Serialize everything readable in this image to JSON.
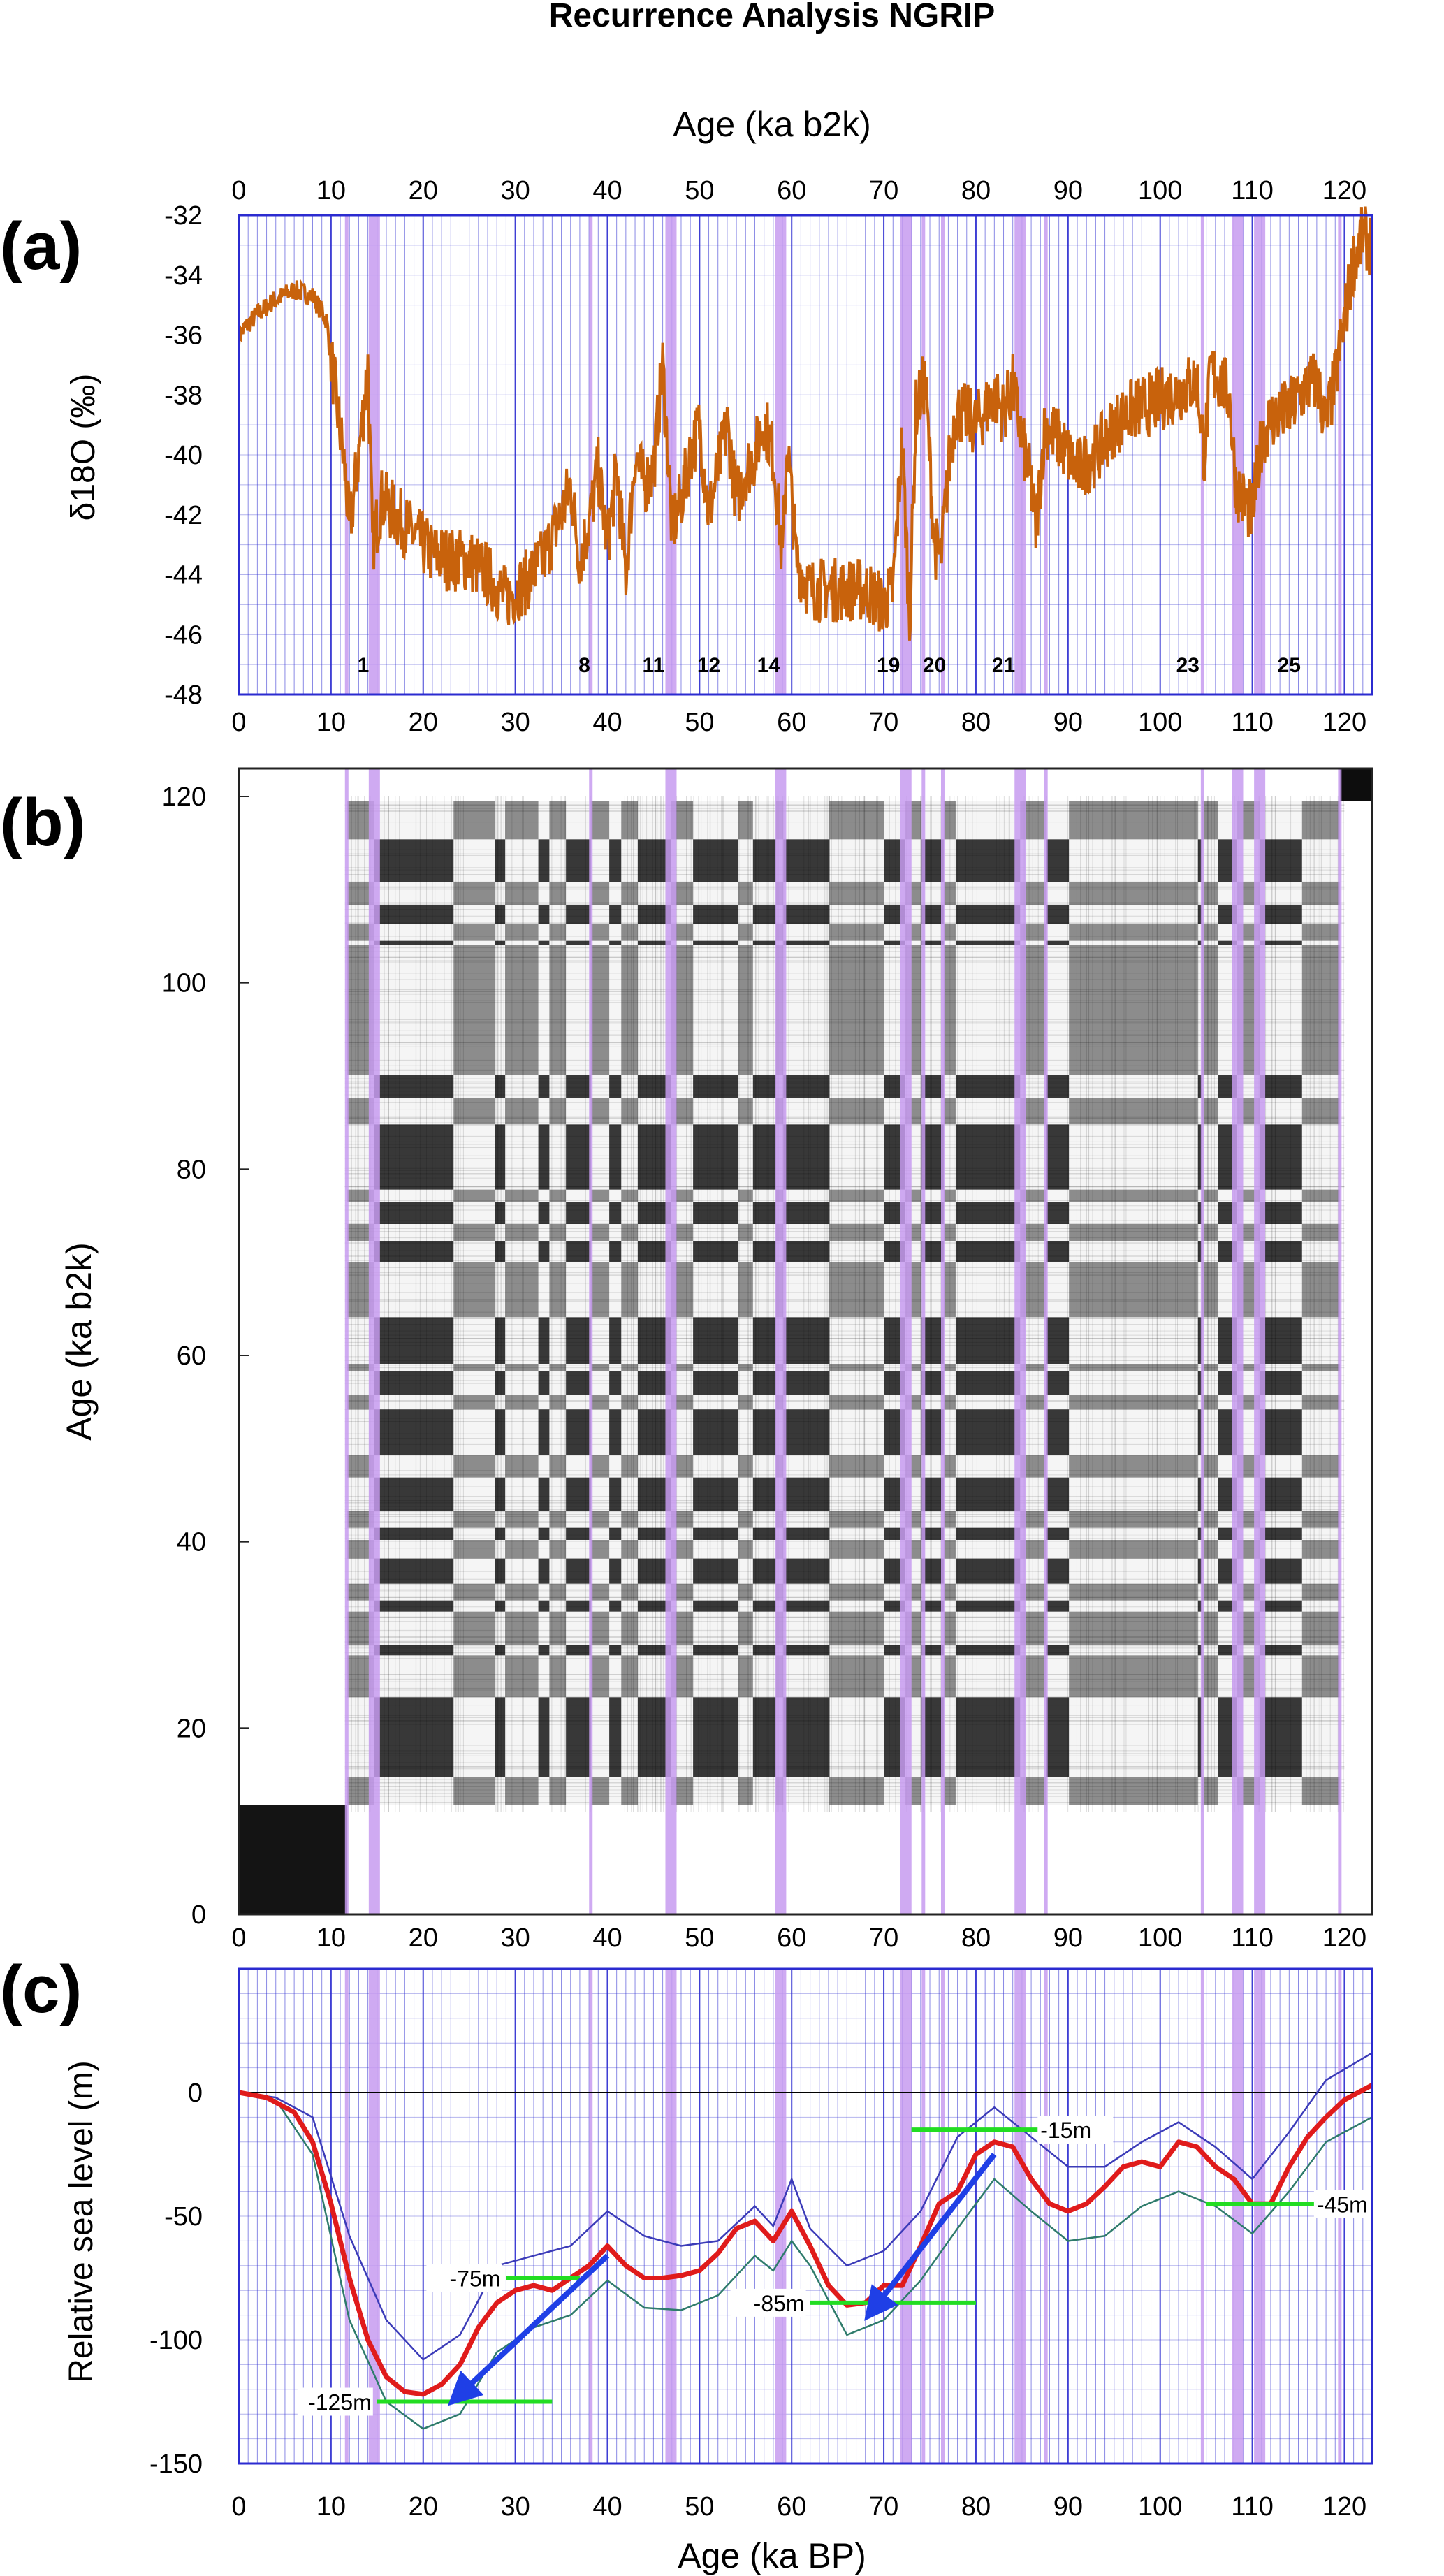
{
  "figure": {
    "title": "Recurrence Analysis NGRIP",
    "panel_labels": [
      "(a)",
      "(b)",
      "(c)"
    ]
  },
  "colors": {
    "isotope_curve": "#c8620c",
    "mean_sea_level": "#e01b1b",
    "envelope_upper": "#3b3bb8",
    "envelope_lower": "#2e7b6b",
    "grid_blue": "#2b2bd0",
    "event_band": "#c79bf0",
    "level_line": "#22dd22",
    "arrow": "#1f3fe6",
    "recurrence_black": "#000000"
  },
  "chart_data": [
    {
      "panel": "(a)",
      "type": "line",
      "title": "",
      "xlabel": "Age (ka b2k)",
      "ylabel": "δ18O (‰)",
      "xlim": [
        0,
        123
      ],
      "ylim": [
        -48,
        -32
      ],
      "x_ticks": [
        0,
        10,
        20,
        30,
        40,
        50,
        60,
        70,
        80,
        90,
        100,
        110,
        120
      ],
      "y_ticks": [
        -32,
        -34,
        -36,
        -38,
        -40,
        -42,
        -44,
        -46,
        -48
      ],
      "grid": true,
      "series": [
        {
          "x": [
            0,
            2,
            4,
            6,
            8,
            9.5,
            10.5,
            11.5,
            12,
            13,
            14,
            14.5,
            15.5,
            17,
            19,
            21,
            23,
            25,
            27,
            29,
            31,
            33,
            35,
            36,
            37,
            38,
            39,
            40,
            41,
            42,
            43,
            44,
            45,
            46,
            47,
            48,
            49,
            50,
            51,
            52,
            53,
            54,
            55,
            56,
            57,
            58,
            59,
            59.5,
            60.5,
            62,
            64,
            66,
            68,
            70,
            71,
            72,
            72.8,
            73.5,
            74.5,
            75.5,
            76.2,
            77,
            77.8,
            79,
            80,
            81,
            82,
            83,
            84,
            85,
            86,
            86.5,
            87.5,
            89,
            91,
            93,
            95,
            97,
            99,
            101,
            103,
            104,
            104.8,
            105.5,
            106.5,
            107.5,
            108.2,
            109,
            110,
            111,
            112,
            114,
            116,
            117,
            118,
            119,
            120,
            121,
            122,
            123
          ],
          "y": [
            -36,
            -35.3,
            -34.8,
            -34.5,
            -34.7,
            -35.5,
            -38,
            -40.5,
            -42.5,
            -40,
            -37,
            -43,
            -41.5,
            -42,
            -42.7,
            -43.3,
            -43.5,
            -43.5,
            -44,
            -44.8,
            -44.3,
            -43.5,
            -42,
            -41,
            -43.5,
            -42.3,
            -40.5,
            -43,
            -40.5,
            -44,
            -40,
            -41,
            -40.5,
            -37,
            -42.5,
            -41.5,
            -40,
            -39,
            -42,
            -40.5,
            -39,
            -41.5,
            -40.5,
            -40,
            -38.8,
            -40,
            -43.5,
            -39.5,
            -43.5,
            -44.5,
            -44.5,
            -44.5,
            -44.5,
            -45,
            -44.5,
            -39.5,
            -45.5,
            -38.5,
            -37.5,
            -43,
            -43.5,
            -40.5,
            -38.5,
            -38.7,
            -39,
            -38.5,
            -38,
            -38.6,
            -37.7,
            -39.5,
            -41,
            -42.5,
            -39,
            -39.5,
            -40.5,
            -40,
            -39,
            -38.5,
            -38.3,
            -38,
            -37.7,
            -37.5,
            -40,
            -37.2,
            -37.5,
            -38,
            -41,
            -41.5,
            -42,
            -39.5,
            -38.8,
            -38.5,
            -37.7,
            -37.5,
            -39,
            -37.5,
            -35.5,
            -33.5,
            -32.7,
            -33
          ]
        }
      ],
      "annotations": [
        {
          "x": 13.5,
          "text": "1"
        },
        {
          "x": 37.5,
          "text": "8"
        },
        {
          "x": 45,
          "text": "11"
        },
        {
          "x": 51,
          "text": "12"
        },
        {
          "x": 57.5,
          "text": "14"
        },
        {
          "x": 70.5,
          "text": "19"
        },
        {
          "x": 75.5,
          "text": "20"
        },
        {
          "x": 83,
          "text": "21"
        },
        {
          "x": 103,
          "text": "23"
        },
        {
          "x": 114,
          "text": "25"
        }
      ]
    },
    {
      "panel": "(b)",
      "type": "heatmap",
      "title": "",
      "xlabel": "",
      "ylabel": "Age (ka b2k)",
      "xlim": [
        0,
        123
      ],
      "ylim": [
        0,
        123
      ],
      "x_ticks": [
        0,
        10,
        20,
        30,
        40,
        50,
        60,
        70,
        80,
        90,
        100,
        110,
        120
      ],
      "y_ticks": [
        0,
        20,
        40,
        60,
        80,
        100,
        120
      ],
      "boundaries": [
        0,
        11.7,
        14.7,
        23.3,
        27.8,
        28.9,
        32.5,
        33.7,
        35.5,
        38.2,
        40.2,
        41.5,
        43.3,
        46.9,
        49.3,
        54.2,
        55.8,
        58.3,
        59.1,
        64.1,
        70.0,
        72.3,
        74.1,
        76.5,
        77.8,
        84.8,
        87.6,
        90.1,
        104.1,
        104.5,
        106.3,
        108.3,
        110.8,
        115.4,
        119.5,
        123
      ],
      "states": [
        2,
        0,
        1,
        0,
        1,
        0,
        1,
        0,
        1,
        0,
        1,
        0,
        1,
        0,
        1,
        0,
        1,
        0,
        1,
        0,
        1,
        0,
        1,
        0,
        1,
        0,
        1,
        0,
        1,
        0,
        1,
        0,
        1,
        0,
        3
      ]
    },
    {
      "panel": "(c)",
      "type": "line",
      "title": "",
      "xlabel": "Age (ka BP)",
      "ylabel": "Relative sea level (m)",
      "xlim": [
        0,
        123
      ],
      "ylim": [
        -150,
        50
      ],
      "x_ticks": [
        0,
        10,
        20,
        30,
        40,
        50,
        60,
        70,
        80,
        90,
        100,
        110,
        120
      ],
      "y_ticks": [
        0,
        -50,
        -100,
        -150
      ],
      "grid": true,
      "series": [
        {
          "role": "mean",
          "x": [
            0,
            3,
            6,
            8,
            10,
            12,
            14,
            16,
            18,
            20,
            22,
            24,
            26,
            28,
            30,
            32,
            34,
            36,
            38,
            40,
            42,
            44,
            46,
            48,
            50,
            52,
            54,
            56,
            58,
            60,
            62,
            64,
            66,
            68,
            70,
            72,
            74,
            76,
            78,
            80,
            82,
            84,
            86,
            88,
            90,
            92,
            94,
            96,
            98,
            100,
            102,
            104,
            106,
            108,
            110,
            112,
            114,
            116,
            118,
            120,
            123
          ],
          "y": [
            0,
            -2,
            -8,
            -20,
            -45,
            -75,
            -100,
            -115,
            -121,
            -122,
            -118,
            -110,
            -95,
            -85,
            -80,
            -78,
            -80,
            -75,
            -70,
            -62,
            -70,
            -75,
            -75,
            -74,
            -72,
            -65,
            -55,
            -52,
            -60,
            -48,
            -62,
            -78,
            -86,
            -85,
            -78,
            -78,
            -62,
            -45,
            -40,
            -25,
            -20,
            -22,
            -35,
            -45,
            -48,
            -45,
            -38,
            -30,
            -28,
            -30,
            -20,
            -22,
            -30,
            -35,
            -45,
            -45,
            -30,
            -18,
            -10,
            -3,
            3
          ]
        },
        {
          "role": "upper",
          "x": [
            0,
            4,
            8,
            12,
            16,
            20,
            24,
            28,
            32,
            36,
            40,
            44,
            48,
            52,
            56,
            58,
            60,
            62,
            66,
            70,
            74,
            78,
            82,
            86,
            90,
            94,
            98,
            102,
            106,
            110,
            114,
            118,
            123
          ],
          "y": [
            0,
            -2,
            -10,
            -58,
            -92,
            -108,
            -98,
            -70,
            -66,
            -62,
            -48,
            -58,
            -62,
            -60,
            -46,
            -54,
            -35,
            -55,
            -70,
            -64,
            -48,
            -18,
            -6,
            -18,
            -30,
            -30,
            -20,
            -12,
            -22,
            -35,
            -16,
            5,
            16
          ]
        },
        {
          "role": "lower",
          "x": [
            0,
            4,
            8,
            12,
            16,
            20,
            24,
            28,
            32,
            36,
            40,
            44,
            48,
            52,
            56,
            58,
            60,
            62,
            66,
            70,
            74,
            78,
            82,
            86,
            90,
            94,
            98,
            102,
            106,
            110,
            114,
            118,
            123
          ],
          "y": [
            0,
            -3,
            -25,
            -92,
            -125,
            -136,
            -130,
            -105,
            -95,
            -90,
            -76,
            -87,
            -88,
            -82,
            -66,
            -72,
            -60,
            -70,
            -98,
            -92,
            -76,
            -55,
            -35,
            -48,
            -60,
            -58,
            -46,
            -40,
            -46,
            -57,
            -40,
            -20,
            -10
          ]
        }
      ],
      "annotations": [
        {
          "text": "-125m",
          "level": -125,
          "x_start": 15,
          "x_end": 34
        },
        {
          "text": "-75m",
          "level": -75,
          "x_start": 29,
          "x_end": 37
        },
        {
          "text": "-85m",
          "level": -85,
          "x_start": 62,
          "x_end": 80
        },
        {
          "text": "-15m",
          "level": -15,
          "x_start": 73,
          "x_end": 87
        },
        {
          "text": "-45m",
          "level": -45,
          "x_start": 105,
          "x_end": 117
        }
      ],
      "arrows": [
        {
          "from": [
            40,
            -66
          ],
          "to": [
            24,
            -122
          ]
        },
        {
          "from": [
            82,
            -25
          ],
          "to": [
            69,
            -87
          ]
        }
      ]
    }
  ],
  "event_lines": [
    {
      "x": 11.7,
      "width": "thin"
    },
    {
      "x": 14.7,
      "width": "thick"
    },
    {
      "x": 38.2,
      "width": "thin"
    },
    {
      "x": 46.9,
      "width": "thick"
    },
    {
      "x": 58.8,
      "width": "thick"
    },
    {
      "x": 72.4,
      "width": "thick"
    },
    {
      "x": 74.3,
      "width": "thin"
    },
    {
      "x": 76.4,
      "width": "thin"
    },
    {
      "x": 84.8,
      "width": "thick"
    },
    {
      "x": 87.6,
      "width": "thin"
    },
    {
      "x": 104.6,
      "width": "thin"
    },
    {
      "x": 108.4,
      "width": "thick"
    },
    {
      "x": 110.8,
      "width": "thick"
    },
    {
      "x": 119.5,
      "width": "thin"
    }
  ]
}
